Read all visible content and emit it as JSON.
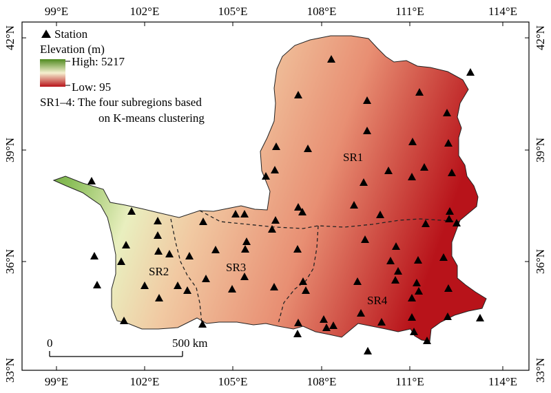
{
  "axes": {
    "top_lon_labels": [
      "99°E",
      "102°E",
      "105°E",
      "108°E",
      "111°E",
      "114°E"
    ],
    "bottom_lon_labels": [
      "99°E",
      "102°E",
      "105°E",
      "108°E",
      "111°E",
      "114°E"
    ],
    "left_lat_labels": [
      "42°N",
      "39°N",
      "36°N",
      "33°N"
    ],
    "right_lat_labels": [
      "42°N",
      "39°N",
      "36°N",
      "33°N"
    ]
  },
  "legend": {
    "station_label": "Station",
    "elevation_title": "Elevation (m)",
    "high_label": "High: 5217",
    "low_label": "Low: 95",
    "subregion_note_line1": "SR1–4: The four subregions based",
    "subregion_note_line2": "on K-means clustering",
    "colors": {
      "high": "#4f8a1f",
      "mid": "#f3ecc0",
      "low": "#b8131a"
    }
  },
  "regions": {
    "sr1": "SR1",
    "sr2": "SR2",
    "sr3": "SR3",
    "sr4": "SR4"
  },
  "scale_bar": {
    "left": "0",
    "right": "500 km"
  },
  "stations": [
    [
      133,
      263
    ],
    [
      137,
      372
    ],
    [
      141,
      414
    ],
    [
      180,
      466
    ],
    [
      191,
      307
    ],
    [
      183,
      356
    ],
    [
      176,
      380
    ],
    [
      210,
      415
    ],
    [
      229,
      321
    ],
    [
      229,
      342
    ],
    [
      230,
      365
    ],
    [
      231,
      433
    ],
    [
      258,
      415
    ],
    [
      246,
      369
    ],
    [
      272,
      422
    ],
    [
      275,
      372
    ],
    [
      295,
      322
    ],
    [
      299,
      405
    ],
    [
      294,
      471
    ],
    [
      313,
      363
    ],
    [
      342,
      311
    ],
    [
      355,
      311
    ],
    [
      358,
      351
    ],
    [
      356,
      362
    ],
    [
      355,
      402
    ],
    [
      337,
      420
    ],
    [
      398,
      417
    ],
    [
      386,
      256
    ],
    [
      401,
      213
    ],
    [
      399,
      247
    ],
    [
      395,
      333
    ],
    [
      400,
      320
    ],
    [
      433,
      138
    ],
    [
      447,
      216
    ],
    [
      433,
      301
    ],
    [
      439,
      308
    ],
    [
      432,
      362
    ],
    [
      440,
      409
    ],
    [
      444,
      422
    ],
    [
      433,
      469
    ],
    [
      432,
      485
    ],
    [
      470,
      464
    ],
    [
      474,
      476
    ],
    [
      484,
      473
    ],
    [
      481,
      86
    ],
    [
      533,
      146
    ],
    [
      533,
      190
    ],
    [
      514,
      298
    ],
    [
      528,
      265
    ],
    [
      530,
      348
    ],
    [
      519,
      409
    ],
    [
      524,
      455
    ],
    [
      534,
      510
    ],
    [
      554,
      468
    ],
    [
      609,
      134
    ],
    [
      649,
      164
    ],
    [
      599,
      206
    ],
    [
      616,
      243
    ],
    [
      564,
      248
    ],
    [
      552,
      312
    ],
    [
      575,
      358
    ],
    [
      567,
      379
    ],
    [
      578,
      394
    ],
    [
      574,
      407
    ],
    [
      607,
      378
    ],
    [
      598,
      433
    ],
    [
      598,
      461
    ],
    [
      601,
      482
    ],
    [
      620,
      495
    ],
    [
      605,
      411
    ],
    [
      608,
      423
    ],
    [
      644,
      374
    ],
    [
      651,
      419
    ],
    [
      650,
      460
    ],
    [
      697,
      462
    ],
    [
      683,
      105
    ],
    [
      651,
      208
    ],
    [
      656,
      251
    ],
    [
      653,
      307
    ],
    [
      652,
      318
    ],
    [
      663,
      324
    ],
    [
      618,
      325
    ],
    [
      598,
      257
    ]
  ]
}
